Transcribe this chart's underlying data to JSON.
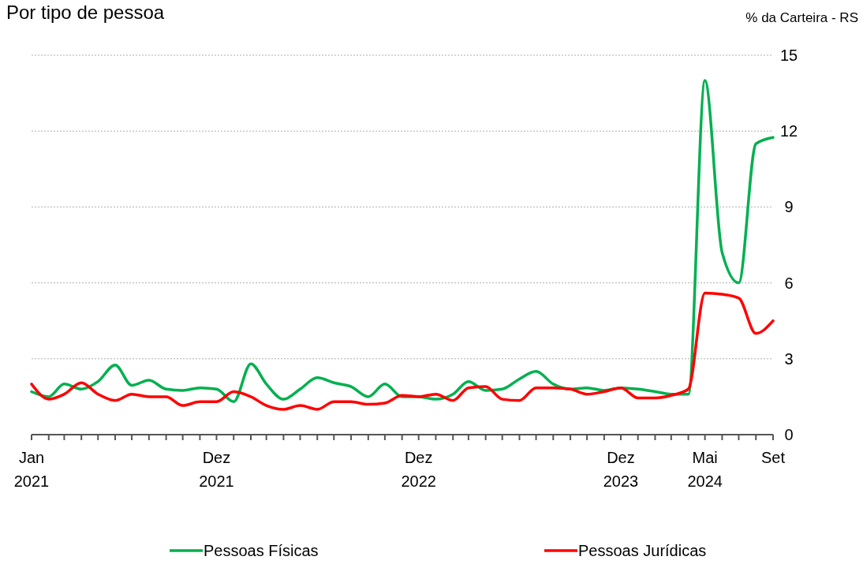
{
  "chart_data": {
    "type": "line",
    "title": "Por tipo de pessoa",
    "ylabel": "% da Carteira - RS",
    "x": [
      "2021-01",
      "2021-02",
      "2021-03",
      "2021-04",
      "2021-05",
      "2021-06",
      "2021-07",
      "2021-08",
      "2021-09",
      "2021-10",
      "2021-11",
      "2021-12",
      "2022-01",
      "2022-02",
      "2022-03",
      "2022-04",
      "2022-05",
      "2022-06",
      "2022-07",
      "2022-08",
      "2022-09",
      "2022-10",
      "2022-11",
      "2022-12",
      "2023-01",
      "2023-02",
      "2023-03",
      "2023-04",
      "2023-05",
      "2023-06",
      "2023-07",
      "2023-08",
      "2023-09",
      "2023-10",
      "2023-11",
      "2023-12",
      "2024-01",
      "2024-02",
      "2024-03",
      "2024-04",
      "2024-05",
      "2024-06",
      "2024-07",
      "2024-08",
      "2024-09"
    ],
    "series": [
      {
        "name": "Pessoas Físicas",
        "color": "#00b050",
        "values": [
          1.7,
          1.5,
          2.0,
          1.8,
          2.1,
          2.75,
          1.95,
          2.15,
          1.8,
          1.75,
          1.85,
          1.8,
          1.3,
          2.8,
          2.0,
          1.4,
          1.8,
          2.25,
          2.05,
          1.9,
          1.5,
          2.0,
          1.5,
          1.5,
          1.4,
          1.6,
          2.1,
          1.75,
          1.8,
          2.2,
          2.5,
          2.0,
          1.8,
          1.85,
          1.75,
          1.85,
          1.8,
          1.7,
          1.6,
          1.6,
          14.0,
          7.2,
          6.0,
          11.5,
          11.75
        ]
      },
      {
        "name": "Pessoas Jurídicas",
        "color": "#ff0000",
        "values": [
          2.0,
          1.4,
          1.6,
          2.05,
          1.6,
          1.35,
          1.6,
          1.5,
          1.5,
          1.15,
          1.3,
          1.3,
          1.7,
          1.5,
          1.15,
          1.0,
          1.15,
          1.0,
          1.3,
          1.3,
          1.2,
          1.25,
          1.55,
          1.5,
          1.6,
          1.35,
          1.85,
          1.9,
          1.4,
          1.35,
          1.85,
          1.85,
          1.8,
          1.6,
          1.7,
          1.85,
          1.45,
          1.45,
          1.55,
          1.8,
          5.6,
          5.55,
          5.4,
          4.0,
          4.5
        ]
      }
    ],
    "xlim": [
      "2021-01",
      "2024-09"
    ],
    "xticks": [
      {
        "value": "2021-01",
        "label": "Jan\n2021"
      },
      {
        "value": "2021-02",
        "label": null
      },
      {
        "value": "2021-03",
        "label": null
      },
      {
        "value": "2021-04",
        "label": null
      },
      {
        "value": "2021-05",
        "label": null
      },
      {
        "value": "2021-06",
        "label": null
      },
      {
        "value": "2021-07",
        "label": null
      },
      {
        "value": "2021-08",
        "label": null
      },
      {
        "value": "2021-09",
        "label": null
      },
      {
        "value": "2021-10",
        "label": null
      },
      {
        "value": "2021-11",
        "label": null
      },
      {
        "value": "2021-12",
        "label": "Dez\n2021"
      },
      {
        "value": "2022-01",
        "label": null
      },
      {
        "value": "2022-02",
        "label": null
      },
      {
        "value": "2022-03",
        "label": null
      },
      {
        "value": "2022-04",
        "label": null
      },
      {
        "value": "2022-05",
        "label": null
      },
      {
        "value": "2022-06",
        "label": null
      },
      {
        "value": "2022-07",
        "label": null
      },
      {
        "value": "2022-08",
        "label": null
      },
      {
        "value": "2022-09",
        "label": null
      },
      {
        "value": "2022-10",
        "label": null
      },
      {
        "value": "2022-11",
        "label": null
      },
      {
        "value": "2022-12",
        "label": "Dez\n2022"
      },
      {
        "value": "2023-01",
        "label": null
      },
      {
        "value": "2023-02",
        "label": null
      },
      {
        "value": "2023-03",
        "label": null
      },
      {
        "value": "2023-04",
        "label": null
      },
      {
        "value": "2023-05",
        "label": null
      },
      {
        "value": "2023-06",
        "label": null
      },
      {
        "value": "2023-07",
        "label": null
      },
      {
        "value": "2023-08",
        "label": null
      },
      {
        "value": "2023-09",
        "label": null
      },
      {
        "value": "2023-10",
        "label": null
      },
      {
        "value": "2023-11",
        "label": null
      },
      {
        "value": "2023-12",
        "label": "Dez\n2023"
      },
      {
        "value": "2024-01",
        "label": null
      },
      {
        "value": "2024-02",
        "label": null
      },
      {
        "value": "2024-03",
        "label": null
      },
      {
        "value": "2024-04",
        "label": null
      },
      {
        "value": "2024-05",
        "label": "Mai\n2024"
      },
      {
        "value": "2024-06",
        "label": null
      },
      {
        "value": "2024-07",
        "label": null
      },
      {
        "value": "2024-08",
        "label": null
      },
      {
        "value": "2024-09",
        "label": "Set"
      }
    ],
    "ylim": [
      0,
      15
    ],
    "yticks": [
      0,
      3,
      6,
      9,
      12,
      15
    ],
    "grid": "y",
    "legend": "bottom",
    "marker": "none",
    "line_style": "solid"
  }
}
